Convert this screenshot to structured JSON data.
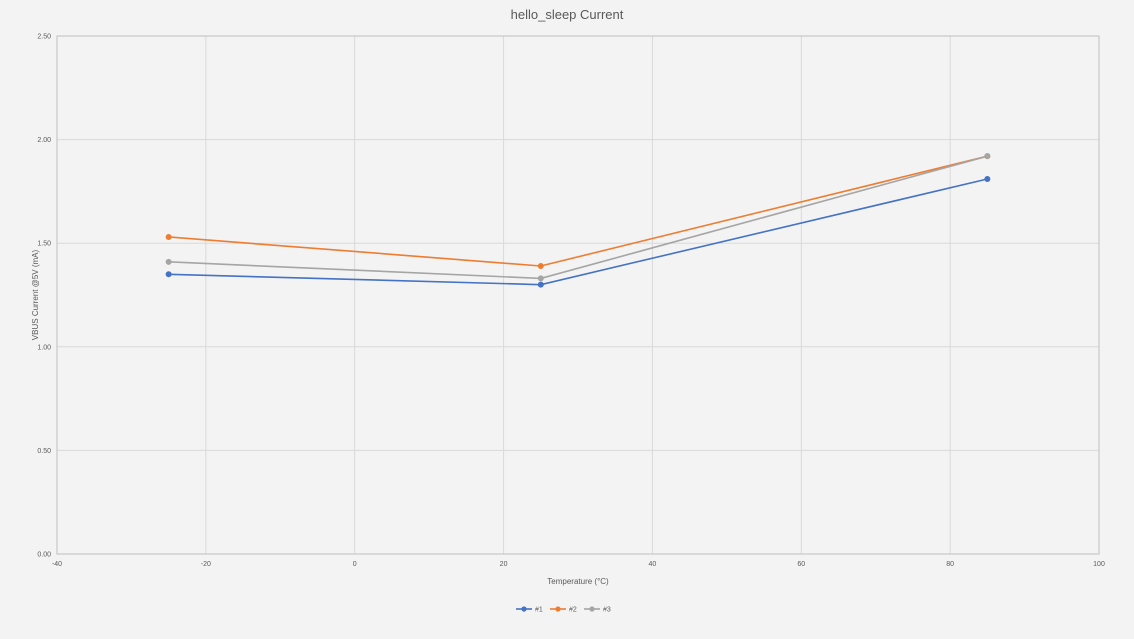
{
  "chart_data": {
    "type": "line",
    "title": "hello_sleep Current",
    "xlabel": "Temperature (°C)",
    "ylabel": "VBUS Current @5V (mA)",
    "xlim": [
      -40,
      100
    ],
    "ylim": [
      0,
      2.5
    ],
    "x_ticks": [
      "-40",
      "-20",
      "0",
      "20",
      "40",
      "60",
      "80",
      "100"
    ],
    "y_ticks": [
      "0.00",
      "0.50",
      "1.00",
      "1.50",
      "2.00",
      "2.50"
    ],
    "x_tick_values": [
      -40,
      -20,
      0,
      20,
      40,
      60,
      80,
      100
    ],
    "y_tick_values": [
      0,
      0.5,
      1.0,
      1.5,
      2.0,
      2.5
    ],
    "x": [
      -25,
      25,
      85
    ],
    "grid": true,
    "legend_position": "bottom",
    "series": [
      {
        "name": "#1",
        "color": "#4472c4",
        "values": [
          1.35,
          1.3,
          1.81
        ]
      },
      {
        "name": "#2",
        "color": "#ed7d31",
        "values": [
          1.53,
          1.39,
          1.92
        ]
      },
      {
        "name": "#3",
        "color": "#a5a5a5",
        "values": [
          1.41,
          1.33,
          1.92
        ]
      }
    ]
  }
}
